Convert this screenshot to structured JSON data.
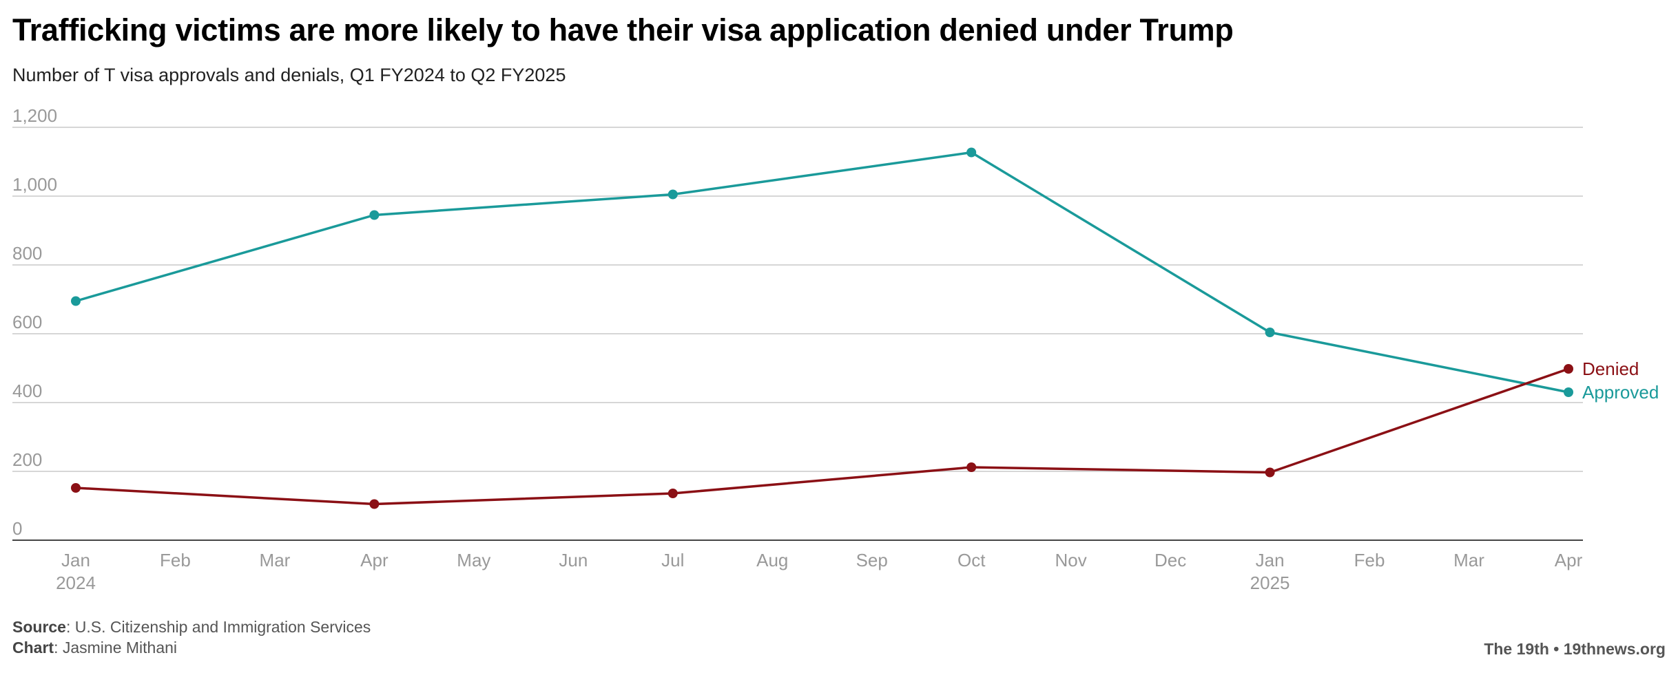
{
  "header": {
    "title": "Trafficking victims are more likely to have their visa application denied under Trump",
    "subtitle": "Number of T visa approvals and denials, Q1 FY2024 to Q2 FY2025"
  },
  "chart_data": {
    "type": "line",
    "title": "Trafficking victims are more likely to have their visa application denied under Trump",
    "subtitle": "Number of T visa approvals and denials, Q1 FY2024 to Q2 FY2025",
    "xlabel": "",
    "ylabel": "",
    "ylim": [
      0,
      1200
    ],
    "y_ticks": [
      0,
      200,
      400,
      600,
      800,
      1000,
      1200
    ],
    "y_tick_labels": [
      "0",
      "200",
      "400",
      "600",
      "800",
      "1,000",
      "1,200"
    ],
    "x_tick_labels": [
      {
        "month": 0,
        "label": "Jan",
        "year": "2024"
      },
      {
        "month": 1,
        "label": "Feb"
      },
      {
        "month": 2,
        "label": "Mar"
      },
      {
        "month": 3,
        "label": "Apr"
      },
      {
        "month": 4,
        "label": "May"
      },
      {
        "month": 5,
        "label": "Jun"
      },
      {
        "month": 6,
        "label": "Jul"
      },
      {
        "month": 7,
        "label": "Aug"
      },
      {
        "month": 8,
        "label": "Sep"
      },
      {
        "month": 9,
        "label": "Oct"
      },
      {
        "month": 10,
        "label": "Nov"
      },
      {
        "month": 11,
        "label": "Dec"
      },
      {
        "month": 12,
        "label": "Jan",
        "year": "2025"
      },
      {
        "month": 13,
        "label": "Feb"
      },
      {
        "month": 14,
        "label": "Mar"
      },
      {
        "month": 15,
        "label": "Apr"
      }
    ],
    "x": [
      0,
      3,
      6,
      9,
      12,
      15
    ],
    "x_labels": [
      "Jan 2024",
      "Apr 2024",
      "Jul 2024",
      "Oct 2024",
      "Jan 2025",
      "Apr 2025"
    ],
    "series": [
      {
        "name": "Approved",
        "color": "#1a9a9a",
        "values": [
          695,
          945,
          1005,
          1127,
          604,
          430
        ]
      },
      {
        "name": "Denied",
        "color": "#8b1015",
        "values": [
          152,
          105,
          136,
          212,
          197,
          498
        ]
      }
    ],
    "grid": true,
    "legend": "inline-right"
  },
  "footer": {
    "source_label": "Source",
    "source_text": ": U.S. Citizenship and Immigration Services",
    "chart_label": "Chart",
    "chart_text": ": Jasmine Mithani",
    "brand": "The 19th • 19thnews.org"
  }
}
